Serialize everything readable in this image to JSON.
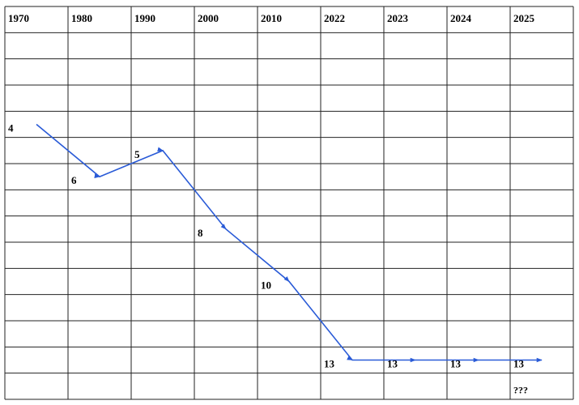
{
  "chart_data": {
    "type": "line",
    "categories": [
      "1970",
      "1980",
      "1990",
      "2000",
      "2010",
      "2022",
      "2023",
      "2024",
      "2025"
    ],
    "values": [
      4,
      6,
      5,
      8,
      10,
      13,
      13,
      13,
      13
    ],
    "ylim": [
      0,
      14
    ],
    "color": "#2a5bd7",
    "annotation": "???"
  }
}
